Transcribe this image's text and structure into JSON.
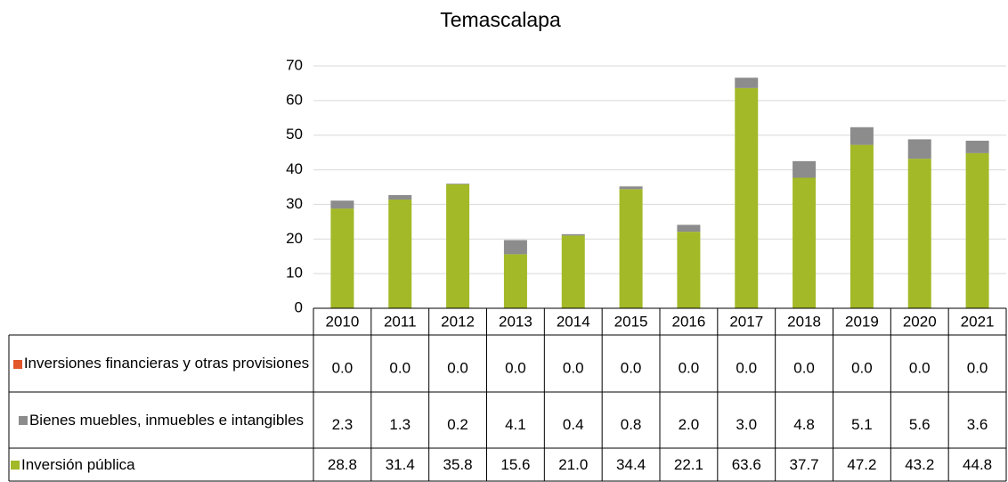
{
  "chart_data": {
    "type": "stacked_bar",
    "title": "Temascalapa",
    "categories": [
      "2010",
      "2011",
      "2012",
      "2013",
      "2014",
      "2015",
      "2016",
      "2017",
      "2018",
      "2019",
      "2020",
      "2021"
    ],
    "series": [
      {
        "name": "Inversiones financieras y otras provisiones",
        "color": "#e2572b",
        "values": [
          0,
          0,
          0,
          0,
          0,
          0,
          0,
          0,
          0,
          0,
          0,
          0
        ],
        "value_labels": [
          "0.0",
          "0.0",
          "0.0",
          "0.0",
          "0.0",
          "0.0",
          "0.0",
          "0.0",
          "0.0",
          "0.0",
          "0.0",
          "0.0"
        ]
      },
      {
        "name": "Bienes muebles, inmuebles e intangibles",
        "color": "#8c8c8c",
        "values": [
          2.3,
          1.3,
          0.2,
          4.1,
          0.4,
          0.8,
          2,
          3,
          4.8,
          5.1,
          5.6,
          3.6
        ],
        "value_labels": [
          "2.3",
          "1.3",
          "0.2",
          "4.1",
          "0.4",
          "0.8",
          "2.0",
          "3.0",
          "4.8",
          "5.1",
          "5.6",
          "3.6"
        ]
      },
      {
        "name": "Inversión pública",
        "color": "#a3b927",
        "values": [
          28.8,
          31.4,
          35.8,
          15.6,
          21,
          34.4,
          22.1,
          63.6,
          37.7,
          47.2,
          43.2,
          44.8
        ],
        "value_labels": [
          "28.8",
          "31.4",
          "35.8",
          "15.6",
          "21.0",
          "34.4",
          "22.1",
          "63.6",
          "37.7",
          "47.2",
          "43.2",
          "44.8"
        ]
      }
    ],
    "ylim": [
      0,
      70
    ],
    "yticks": [
      0,
      10,
      20,
      30,
      40,
      50,
      60,
      70
    ],
    "grid": true
  }
}
